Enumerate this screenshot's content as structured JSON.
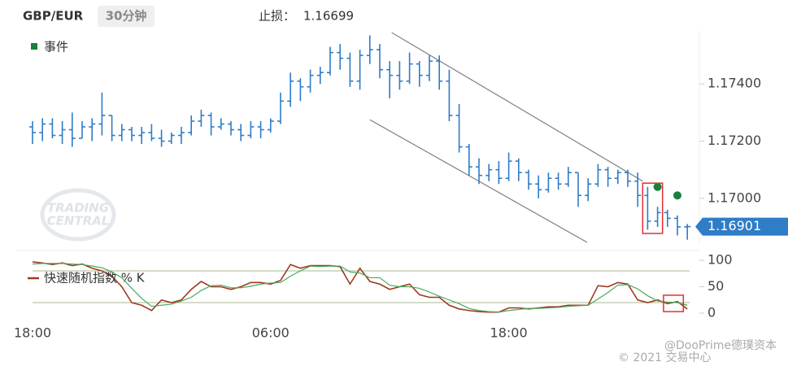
{
  "header": {
    "symbol": "GBP/EUR",
    "interval": "30分钟",
    "stop_loss_label": "止损：",
    "stop_loss": 1.16699
  },
  "watermark": [
    "TRADING",
    "CENTRAL"
  ],
  "footer": [
    "@DooPrime德璞资本",
    "© 2021 交易中心"
  ],
  "chart_data": [
    {
      "type": "ohlc",
      "color": "#2f7cc7",
      "ylim": [
        1.1684,
        1.1758
      ],
      "yticks": [
        {
          "value": 1.174,
          "label": "1.17400"
        },
        {
          "value": 1.172,
          "label": "1.17200"
        },
        {
          "value": 1.17,
          "label": "1.17000"
        }
      ],
      "open": [
        1.1725,
        1.1723,
        1.1726,
        1.1722,
        1.1724,
        1.1721,
        1.1725,
        1.1726,
        1.1729,
        1.1722,
        1.1724,
        1.1722,
        1.1723,
        1.1721,
        1.172,
        1.1722,
        1.1723,
        1.1727,
        1.1729,
        1.1725,
        1.1726,
        1.1724,
        1.1722,
        1.1725,
        1.1724,
        1.1727,
        1.1734,
        1.1741,
        1.1739,
        1.1743,
        1.1744,
        1.1751,
        1.1749,
        1.1741,
        1.175,
        1.1752,
        1.1745,
        1.1743,
        1.1741,
        1.1747,
        1.1743,
        1.1748,
        1.1741,
        1.1729,
        1.1718,
        1.1711,
        1.1708,
        1.171,
        1.1707,
        1.1713,
        1.1709,
        1.1705,
        1.1703,
        1.1707,
        1.1705,
        1.1709,
        1.1701,
        1.1705,
        1.171,
        1.1707,
        1.1709,
        1.1706,
        1.1701,
        1.1692,
        1.1695,
        1.1693,
        1.169
      ],
      "high": [
        1.1727,
        1.1728,
        1.1728,
        1.1727,
        1.173,
        1.1727,
        1.1728,
        1.1737,
        1.1729,
        1.1726,
        1.1725,
        1.1725,
        1.1726,
        1.1724,
        1.1723,
        1.1725,
        1.1729,
        1.1731,
        1.173,
        1.1728,
        1.1727,
        1.1726,
        1.1727,
        1.1727,
        1.1728,
        1.1737,
        1.1744,
        1.1742,
        1.1745,
        1.1746,
        1.1753,
        1.1754,
        1.1751,
        1.1752,
        1.1757,
        1.1754,
        1.1748,
        1.1748,
        1.1751,
        1.1748,
        1.175,
        1.175,
        1.1745,
        1.1733,
        1.1719,
        1.1714,
        1.1712,
        1.1713,
        1.1716,
        1.1714,
        1.171,
        1.1708,
        1.1709,
        1.1709,
        1.1711,
        1.1709,
        1.1707,
        1.1712,
        1.1711,
        1.171,
        1.171,
        1.1709,
        1.1704,
        1.1697,
        1.1696,
        1.1694,
        1.1691
      ],
      "low": [
        1.1719,
        1.172,
        1.1721,
        1.1719,
        1.1718,
        1.1721,
        1.172,
        1.1722,
        1.172,
        1.172,
        1.172,
        1.1719,
        1.172,
        1.1718,
        1.1719,
        1.1719,
        1.1722,
        1.1725,
        1.1722,
        1.1724,
        1.1722,
        1.172,
        1.1721,
        1.1721,
        1.1723,
        1.1726,
        1.1732,
        1.1734,
        1.1737,
        1.174,
        1.1743,
        1.1745,
        1.1739,
        1.1738,
        1.1747,
        1.1742,
        1.1735,
        1.1738,
        1.174,
        1.1739,
        1.1741,
        1.1738,
        1.1727,
        1.1716,
        1.1708,
        1.1705,
        1.1706,
        1.1705,
        1.1706,
        1.1706,
        1.1703,
        1.17,
        1.1702,
        1.1703,
        1.1704,
        1.1697,
        1.1699,
        1.1704,
        1.1704,
        1.1705,
        1.1704,
        1.1697,
        1.1689,
        1.169,
        1.169,
        1.1687,
        1.16855
      ],
      "close": [
        1.1723,
        1.1726,
        1.1722,
        1.1724,
        1.1721,
        1.1725,
        1.1726,
        1.1729,
        1.1722,
        1.1724,
        1.1722,
        1.1723,
        1.1721,
        1.172,
        1.1722,
        1.1723,
        1.1727,
        1.1729,
        1.1725,
        1.1726,
        1.1724,
        1.1722,
        1.1725,
        1.1724,
        1.1727,
        1.1734,
        1.1741,
        1.1739,
        1.1743,
        1.1744,
        1.1751,
        1.1749,
        1.1741,
        1.175,
        1.1752,
        1.1745,
        1.1743,
        1.1741,
        1.1747,
        1.1743,
        1.1748,
        1.1741,
        1.1729,
        1.1718,
        1.1711,
        1.1708,
        1.171,
        1.1707,
        1.1713,
        1.1709,
        1.1705,
        1.1703,
        1.1707,
        1.1705,
        1.1709,
        1.1701,
        1.1705,
        1.171,
        1.1707,
        1.1709,
        1.1706,
        1.1701,
        1.1692,
        1.1695,
        1.1693,
        1.169,
        1.16901
      ],
      "trendlines": [
        {
          "x": [
            36.2,
            61.5
          ],
          "y": [
            1.1758,
            1.1706
          ],
          "color": "#888888"
        },
        {
          "x": [
            34.0,
            55.9
          ],
          "y": [
            1.17275,
            1.16846
          ],
          "color": "#888888"
        }
      ],
      "events": {
        "label": "事件",
        "color": "#1a7f3c",
        "x": [
          63,
          65
        ],
        "y": [
          1.1704,
          1.1701
        ]
      },
      "highlight": {
        "color": "#e03030",
        "x": [
          61.5,
          63.5
        ],
        "y": [
          1.16877,
          1.17053
        ]
      }
    },
    {
      "type": "line",
      "categories": [
        "18:00",
        null,
        null,
        null,
        null,
        null,
        null,
        null,
        null,
        null,
        null,
        null,
        null,
        null,
        null,
        null,
        null,
        null,
        null,
        null,
        null,
        null,
        null,
        null,
        "06:00",
        null,
        null,
        null,
        null,
        null,
        null,
        null,
        null,
        null,
        null,
        null,
        null,
        null,
        null,
        null,
        null,
        null,
        null,
        null,
        null,
        null,
        null,
        null,
        "18:00",
        null,
        null,
        null,
        null,
        null,
        null,
        null,
        null,
        null,
        null,
        null,
        null,
        null,
        null,
        null,
        null,
        null,
        null
      ],
      "ylim": [
        0,
        100
      ],
      "yticks": [
        0,
        50,
        100
      ],
      "levels": [
        20,
        80
      ],
      "level_color": "#a8b890",
      "series": [
        {
          "name": "快速随机指数 % K",
          "color": "#a0391e",
          "values": [
            97,
            95,
            92,
            95,
            90,
            93,
            85,
            80,
            70,
            50,
            20,
            15,
            5,
            25,
            20,
            25,
            45,
            60,
            50,
            50,
            45,
            50,
            58,
            58,
            55,
            62,
            92,
            85,
            90,
            90,
            90,
            88,
            55,
            85,
            60,
            55,
            45,
            50,
            55,
            35,
            30,
            30,
            15,
            8,
            5,
            3,
            2,
            2,
            10,
            10,
            8,
            10,
            12,
            12,
            15,
            15,
            15,
            52,
            50,
            58,
            55,
            25,
            20,
            25,
            18,
            22,
            8
          ]
        },
        {
          "color": "#4aa860",
          "values": [
            93,
            94,
            94,
            94,
            93,
            92,
            89,
            86,
            78,
            67,
            47,
            28,
            13,
            15,
            17,
            23,
            30,
            43,
            52,
            53,
            48,
            48,
            51,
            55,
            57,
            58,
            70,
            80,
            89,
            88,
            89,
            89,
            78,
            76,
            67,
            67,
            53,
            50,
            50,
            47,
            40,
            32,
            25,
            18,
            9,
            5,
            3,
            2,
            5,
            7,
            9,
            9,
            10,
            11,
            13,
            14,
            15,
            27,
            39,
            53,
            54,
            46,
            33,
            23,
            21,
            20,
            15
          ]
        }
      ],
      "highlight": {
        "color": "#e03030",
        "x": [
          63.6,
          65.6
        ],
        "y": [
          3,
          34
        ]
      }
    }
  ]
}
